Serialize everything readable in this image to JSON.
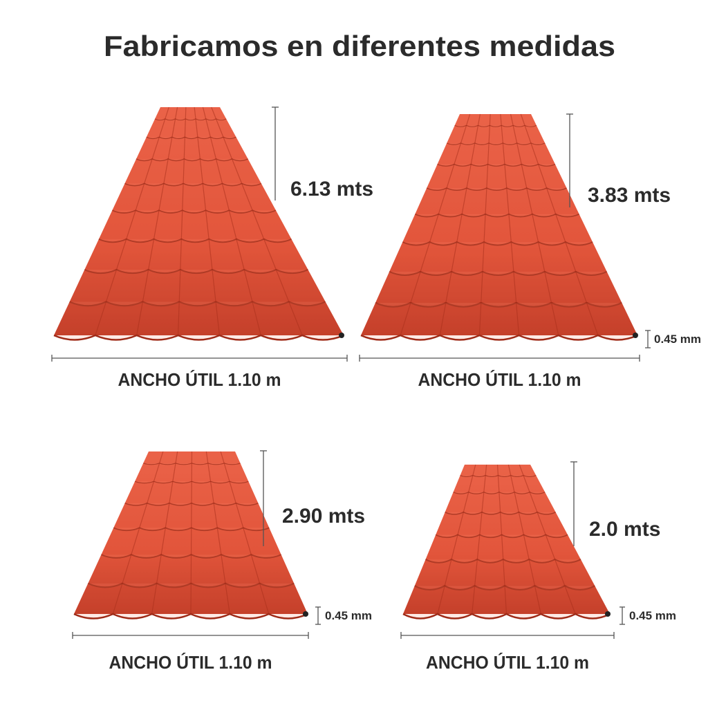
{
  "title": "Fabricamos en diferentes medidas",
  "panels": [
    {
      "length": "6.13 mts",
      "width": "ANCHO ÚTIL 1.10 m"
    },
    {
      "length": "3.83 mts",
      "thickness": "0.45 mm",
      "width": "ANCHO ÚTIL 1.10 m"
    },
    {
      "length": "2.90 mts",
      "thickness": "0.45 mm",
      "width": "ANCHO ÚTIL 1.10 m"
    },
    {
      "length": "2.0 mts",
      "thickness": "0.45 mm",
      "width": "ANCHO ÚTIL 1.10 m"
    }
  ]
}
